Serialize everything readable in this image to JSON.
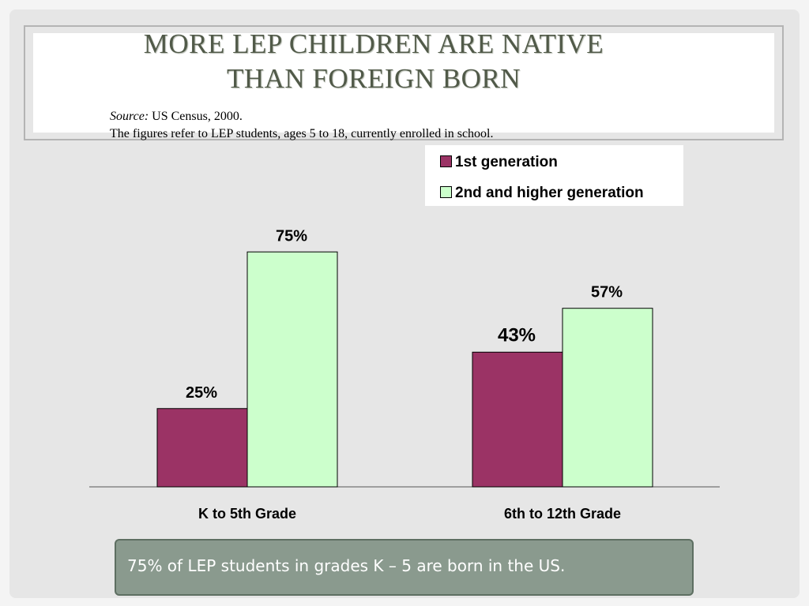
{
  "slide": {
    "title_lines": [
      "MORE LEP CHILDREN ARE NATIVE",
      "THAN FOREIGN BORN"
    ],
    "source_label": "Source:",
    "source_text": " US Census, 2000.",
    "note": "The figures refer to LEP students, ages 5 to 18, currently enrolled in school.",
    "takeaway": "75% of LEP students in grades K – 5 are born in the US."
  },
  "colors": {
    "series1": "#9b3365",
    "series2": "#ccffcc",
    "title": "#515a49",
    "takeaway_bg": "#8a9a8e"
  },
  "chart_data": {
    "type": "bar",
    "categories": [
      "K to 5th Grade",
      "6th to 12th Grade"
    ],
    "series": [
      {
        "name": "1st generation",
        "values": [
          25,
          43
        ],
        "labels": [
          "25%",
          "43%"
        ]
      },
      {
        "name": "2nd and higher generation",
        "values": [
          75,
          57
        ],
        "labels": [
          "75%",
          "57%"
        ]
      }
    ],
    "ylim": [
      0,
      100
    ],
    "legend_position": "top-right",
    "grid": false
  }
}
